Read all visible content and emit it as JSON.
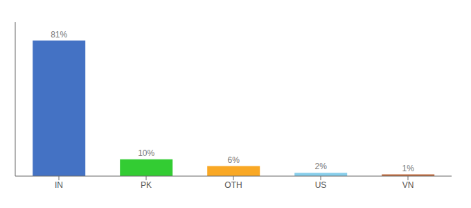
{
  "chart_data": {
    "type": "bar",
    "categories": [
      "IN",
      "PK",
      "OTH",
      "US",
      "VN"
    ],
    "values": [
      81,
      10,
      6,
      2,
      1
    ],
    "value_labels": [
      "81%",
      "10%",
      "6%",
      "2%",
      "1%"
    ],
    "colors": [
      "#4472c4",
      "#33cc33",
      "#f9a825",
      "#87ceeb",
      "#c0693a"
    ],
    "ylim": [
      0,
      92
    ],
    "data_labels": true,
    "tick_labels": "x",
    "grid": false
  }
}
